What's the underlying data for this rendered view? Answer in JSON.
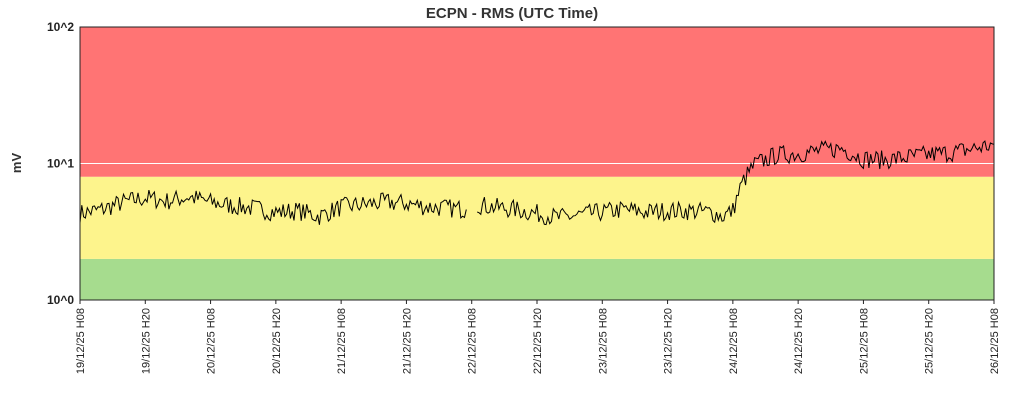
{
  "chart_data": {
    "type": "line",
    "title": "ECPN - RMS (UTC Time)",
    "ylabel": "mV",
    "xlabel": "",
    "y_scale": "log",
    "ylim": [
      1,
      100
    ],
    "y_ticks": [
      {
        "value": 1,
        "label": "10^0"
      },
      {
        "value": 10,
        "label": "10^1"
      },
      {
        "value": 100,
        "label": "10^2"
      }
    ],
    "xlim": [
      "2025-12-19T08:00",
      "2025-12-26T08:00"
    ],
    "x_ticks": [
      {
        "value": "2025-12-19T08:00",
        "label": "19/12/25 H08"
      },
      {
        "value": "2025-12-19T20:00",
        "label": "19/12/25 H20"
      },
      {
        "value": "2025-12-20T08:00",
        "label": "20/12/25 H08"
      },
      {
        "value": "2025-12-20T20:00",
        "label": "20/12/25 H20"
      },
      {
        "value": "2025-12-21T08:00",
        "label": "21/12/25 H08"
      },
      {
        "value": "2025-12-21T20:00",
        "label": "21/12/25 H20"
      },
      {
        "value": "2025-12-22T08:00",
        "label": "22/12/25 H08"
      },
      {
        "value": "2025-12-22T20:00",
        "label": "22/12/25 H20"
      },
      {
        "value": "2025-12-23T08:00",
        "label": "23/12/25 H08"
      },
      {
        "value": "2025-12-23T20:00",
        "label": "23/12/25 H20"
      },
      {
        "value": "2025-12-24T08:00",
        "label": "24/12/25 H08"
      },
      {
        "value": "2025-12-24T20:00",
        "label": "24/12/25 H20"
      },
      {
        "value": "2025-12-25T08:00",
        "label": "25/12/25 H08"
      },
      {
        "value": "2025-12-25T20:00",
        "label": "25/12/25 H20"
      },
      {
        "value": "2025-12-26T08:00",
        "label": "26/12/25 H08"
      }
    ],
    "bands": [
      {
        "from": 1,
        "to": 2,
        "color": "#a6dc8e"
      },
      {
        "from": 2,
        "to": 8,
        "color": "#fdf48c"
      },
      {
        "from": 8,
        "to": 100,
        "color": "#ff7474"
      }
    ],
    "grid": "horizontal-at-major-ticks",
    "series": [
      {
        "color": "#000000",
        "segments": [
          {
            "x": [
              "2025-12-19T08:00",
              "2025-12-19T12:00",
              "2025-12-19T16:00",
              "2025-12-19T20:00",
              "2025-12-20T00:00",
              "2025-12-20T04:00",
              "2025-12-20T08:00",
              "2025-12-20T12:00",
              "2025-12-20T16:00",
              "2025-12-20T20:00",
              "2025-12-21T00:00",
              "2025-12-21T04:00",
              "2025-12-21T08:00",
              "2025-12-21T12:00",
              "2025-12-21T16:00",
              "2025-12-21T20:00",
              "2025-12-22T00:00",
              "2025-12-22T04:00",
              "2025-12-22T07:00"
            ],
            "y": [
              4.3,
              4.6,
              5.2,
              5.6,
              5.3,
              5.7,
              5.2,
              4.9,
              4.7,
              4.4,
              4.5,
              4.1,
              4.8,
              5.0,
              5.2,
              5.1,
              4.8,
              4.7,
              4.6
            ]
          },
          {
            "x": [
              "2025-12-22T09:00",
              "2025-12-22T12:00",
              "2025-12-22T16:00",
              "2025-12-22T20:00",
              "2025-12-23T00:00",
              "2025-12-23T04:00",
              "2025-12-23T08:00",
              "2025-12-23T12:00",
              "2025-12-23T16:00",
              "2025-12-23T20:00",
              "2025-12-24T00:00",
              "2025-12-24T04:00",
              "2025-12-24T06:00",
              "2025-12-24T08:00",
              "2025-12-24T10:00",
              "2025-12-24T12:00",
              "2025-12-24T16:00",
              "2025-12-24T20:00",
              "2025-12-25T00:00",
              "2025-12-25T04:00",
              "2025-12-25T08:00",
              "2025-12-25T12:00",
              "2025-12-25T16:00",
              "2025-12-25T20:00",
              "2025-12-26T00:00",
              "2025-12-26T04:00",
              "2025-12-26T08:00"
            ],
            "y": [
              5.0,
              4.8,
              4.6,
              4.3,
              4.0,
              4.2,
              4.4,
              4.6,
              4.4,
              4.5,
              4.5,
              4.4,
              4.1,
              4.5,
              7.5,
              9.8,
              11.5,
              11.8,
              12.4,
              12.9,
              10.8,
              10.6,
              11.1,
              11.6,
              12.0,
              12.8,
              13.8
            ]
          }
        ]
      }
    ]
  }
}
